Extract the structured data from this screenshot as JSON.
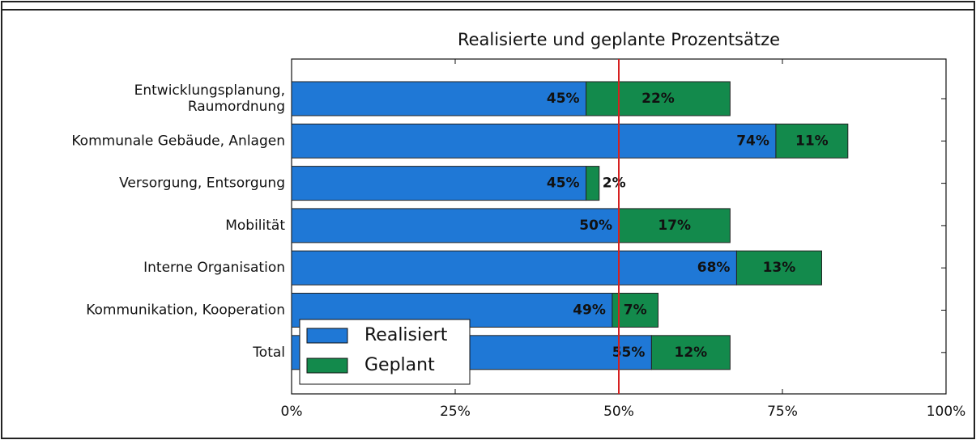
{
  "chart_data": {
    "type": "barh_stacked",
    "title": "Realisierte und geplante Prozentsätze",
    "categories": [
      "Entwicklungsplanung,\nRaumordnung",
      "Kommunale Gebäude, Anlagen",
      "Versorgung, Entsorgung",
      "Mobilität",
      "Interne Organisation",
      "Kommunikation, Kooperation",
      "Total"
    ],
    "series": [
      {
        "name": "Realisiert",
        "color": "#1f78d6",
        "values": [
          45,
          74,
          45,
          50,
          68,
          49,
          55
        ],
        "value_labels": [
          "45%",
          "74%",
          "45%",
          "50%",
          "68%",
          "49%",
          "55%"
        ]
      },
      {
        "name": "Geplant",
        "color": "#138a4c",
        "values": [
          22,
          11,
          2,
          17,
          13,
          7,
          12
        ],
        "value_labels": [
          "22%",
          "11%",
          "2%",
          "17%",
          "13%",
          "7%",
          "12%"
        ]
      }
    ],
    "xlim": [
      0,
      100
    ],
    "xticks": [
      {
        "value": 0,
        "label": "0%"
      },
      {
        "value": 25,
        "label": "25%"
      },
      {
        "value": 50,
        "label": "50%"
      },
      {
        "value": 75,
        "label": "75%"
      },
      {
        "value": 100,
        "label": "100%"
      }
    ],
    "vline": {
      "value": 50,
      "color": "#d62020"
    },
    "legend": "lower left"
  }
}
